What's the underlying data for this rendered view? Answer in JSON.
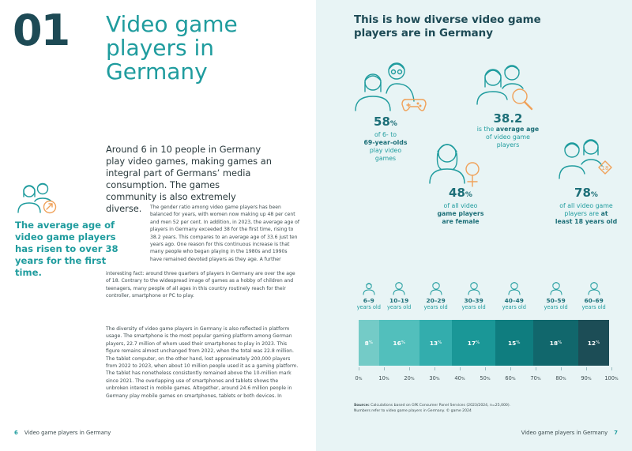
{
  "left_page": {
    "chapter_number": "01",
    "chapter_title": "Video game players in Germany",
    "intro": "Around 6 in 10 people in Germany play video games, making games an integral part of Germans’ media consumption. The games community is also extremely diverse.",
    "pull_quote": "The average age of video game players has risen to over 38 years for the first time.",
    "para1_part1": "The gender ratio among video game players has been balanced for years, with women now making up 48 per cent and men 52 per cent. In addition, in 2023, the average age of players in Germany exceeded 38 for the first time, rising to 38.2 years. This compares to an average age of 33.6 just ten years ago. One reason for this continuous increase is that many people who began playing in the 1980s and 1990s have remained devoted players as they age. A further",
    "para1_part2": "interesting fact: around three quarters of players in Germany are over the age of 18. Contrary to the widespread image of games as a hobby of children and teenagers, many people of all ages in this country routinely reach for their controller, smartphone or PC to play.",
    "para2": "The diversity of video game players in Germany is also reflected in platform usage. The smartphone is the most popular gaming platform among German players, 22.7 million of whom used their smartphones to play in 2023. This figure remains almost unchanged from 2022, when the total was 22.8 million. The tablet computer, on the other hand, lost approximately 200,000 players from 2022 to 2023, when about 10 million people used it as a gaming platform. The tablet has nonetheless consistently remained above the 10-million mark since 2021. The overlapping use of smartphones and tablets shows the unbroken interest in mobile games. Altogether, around 24.6 million people in Germany play mobile games on smartphones, tablets or both devices. In",
    "footer_page": "6",
    "footer_text": "Video game players in Germany",
    "side_icon": "people-trending-up-icon"
  },
  "right_page": {
    "heading": "This is how diverse video game players are in Germany",
    "stats": [
      {
        "value": "58",
        "unit": "%",
        "line1": "of 6- to",
        "line2": "69-year-olds",
        "line3": "play video",
        "line4": "games",
        "icon": "family-gamepad-icon"
      },
      {
        "value": "38.2",
        "line1": "is the",
        "emph1": "average age",
        "line2": "of video game",
        "line3": "players",
        "icon": "couple-magnifier-icon"
      },
      {
        "value": "48",
        "unit": "%",
        "line1": "of all video",
        "line2": "game players",
        "line3": "are female",
        "icon": "woman-female-symbol-icon"
      },
      {
        "value": "78",
        "unit": "%",
        "line1": "of all video game",
        "line2": "players are",
        "emph2": "at",
        "line3": "least 18 years old",
        "icon": "couple-age-18-icon"
      }
    ],
    "age_groups": [
      {
        "range": "6–9",
        "label": "years old",
        "icon": "child-icon"
      },
      {
        "range": "10–19",
        "label": "years old",
        "icon": "teen-icon"
      },
      {
        "range": "20–29",
        "label": "years old",
        "icon": "young-adult-icon"
      },
      {
        "range": "30–39",
        "label": "years old",
        "icon": "adult-woman-icon"
      },
      {
        "range": "40–49",
        "label": "years old",
        "icon": "adult-man-icon"
      },
      {
        "range": "50–59",
        "label": "years old",
        "icon": "middle-aged-man-icon"
      },
      {
        "range": "60–69",
        "label": "years old",
        "icon": "senior-woman-icon"
      }
    ],
    "source_label": "Source:",
    "source_text": "Calculations based on GfK Consumer Panel Services (2023/2024, n=25,000).",
    "source_note": "Numbers refer to video game players in Germany. © game 2024",
    "footer_text": "Video game players in Germany",
    "footer_page": "7",
    "colors": {
      "teal_dark": "#1d4a55",
      "teal": "#1f9c9e",
      "segments": [
        "#74cbc7",
        "#52bfbc",
        "#33adad",
        "#1a9797",
        "#0f7d7f",
        "#11676c",
        "#1c4d56"
      ]
    }
  },
  "chart_data": {
    "type": "bar",
    "orientation": "horizontal-stacked",
    "categories": [
      "6–9",
      "10–19",
      "20–29",
      "30–39",
      "40–49",
      "50–59",
      "60–69"
    ],
    "values": [
      8,
      16,
      13,
      17,
      15,
      18,
      12
    ],
    "value_suffix": "%",
    "xlim": [
      0,
      100
    ],
    "x_ticks": [
      "0",
      "10",
      "20",
      "30",
      "40",
      "50",
      "60",
      "70",
      "80",
      "90",
      "100"
    ],
    "tick_suffix": "%",
    "grid": false,
    "legend": "none"
  }
}
